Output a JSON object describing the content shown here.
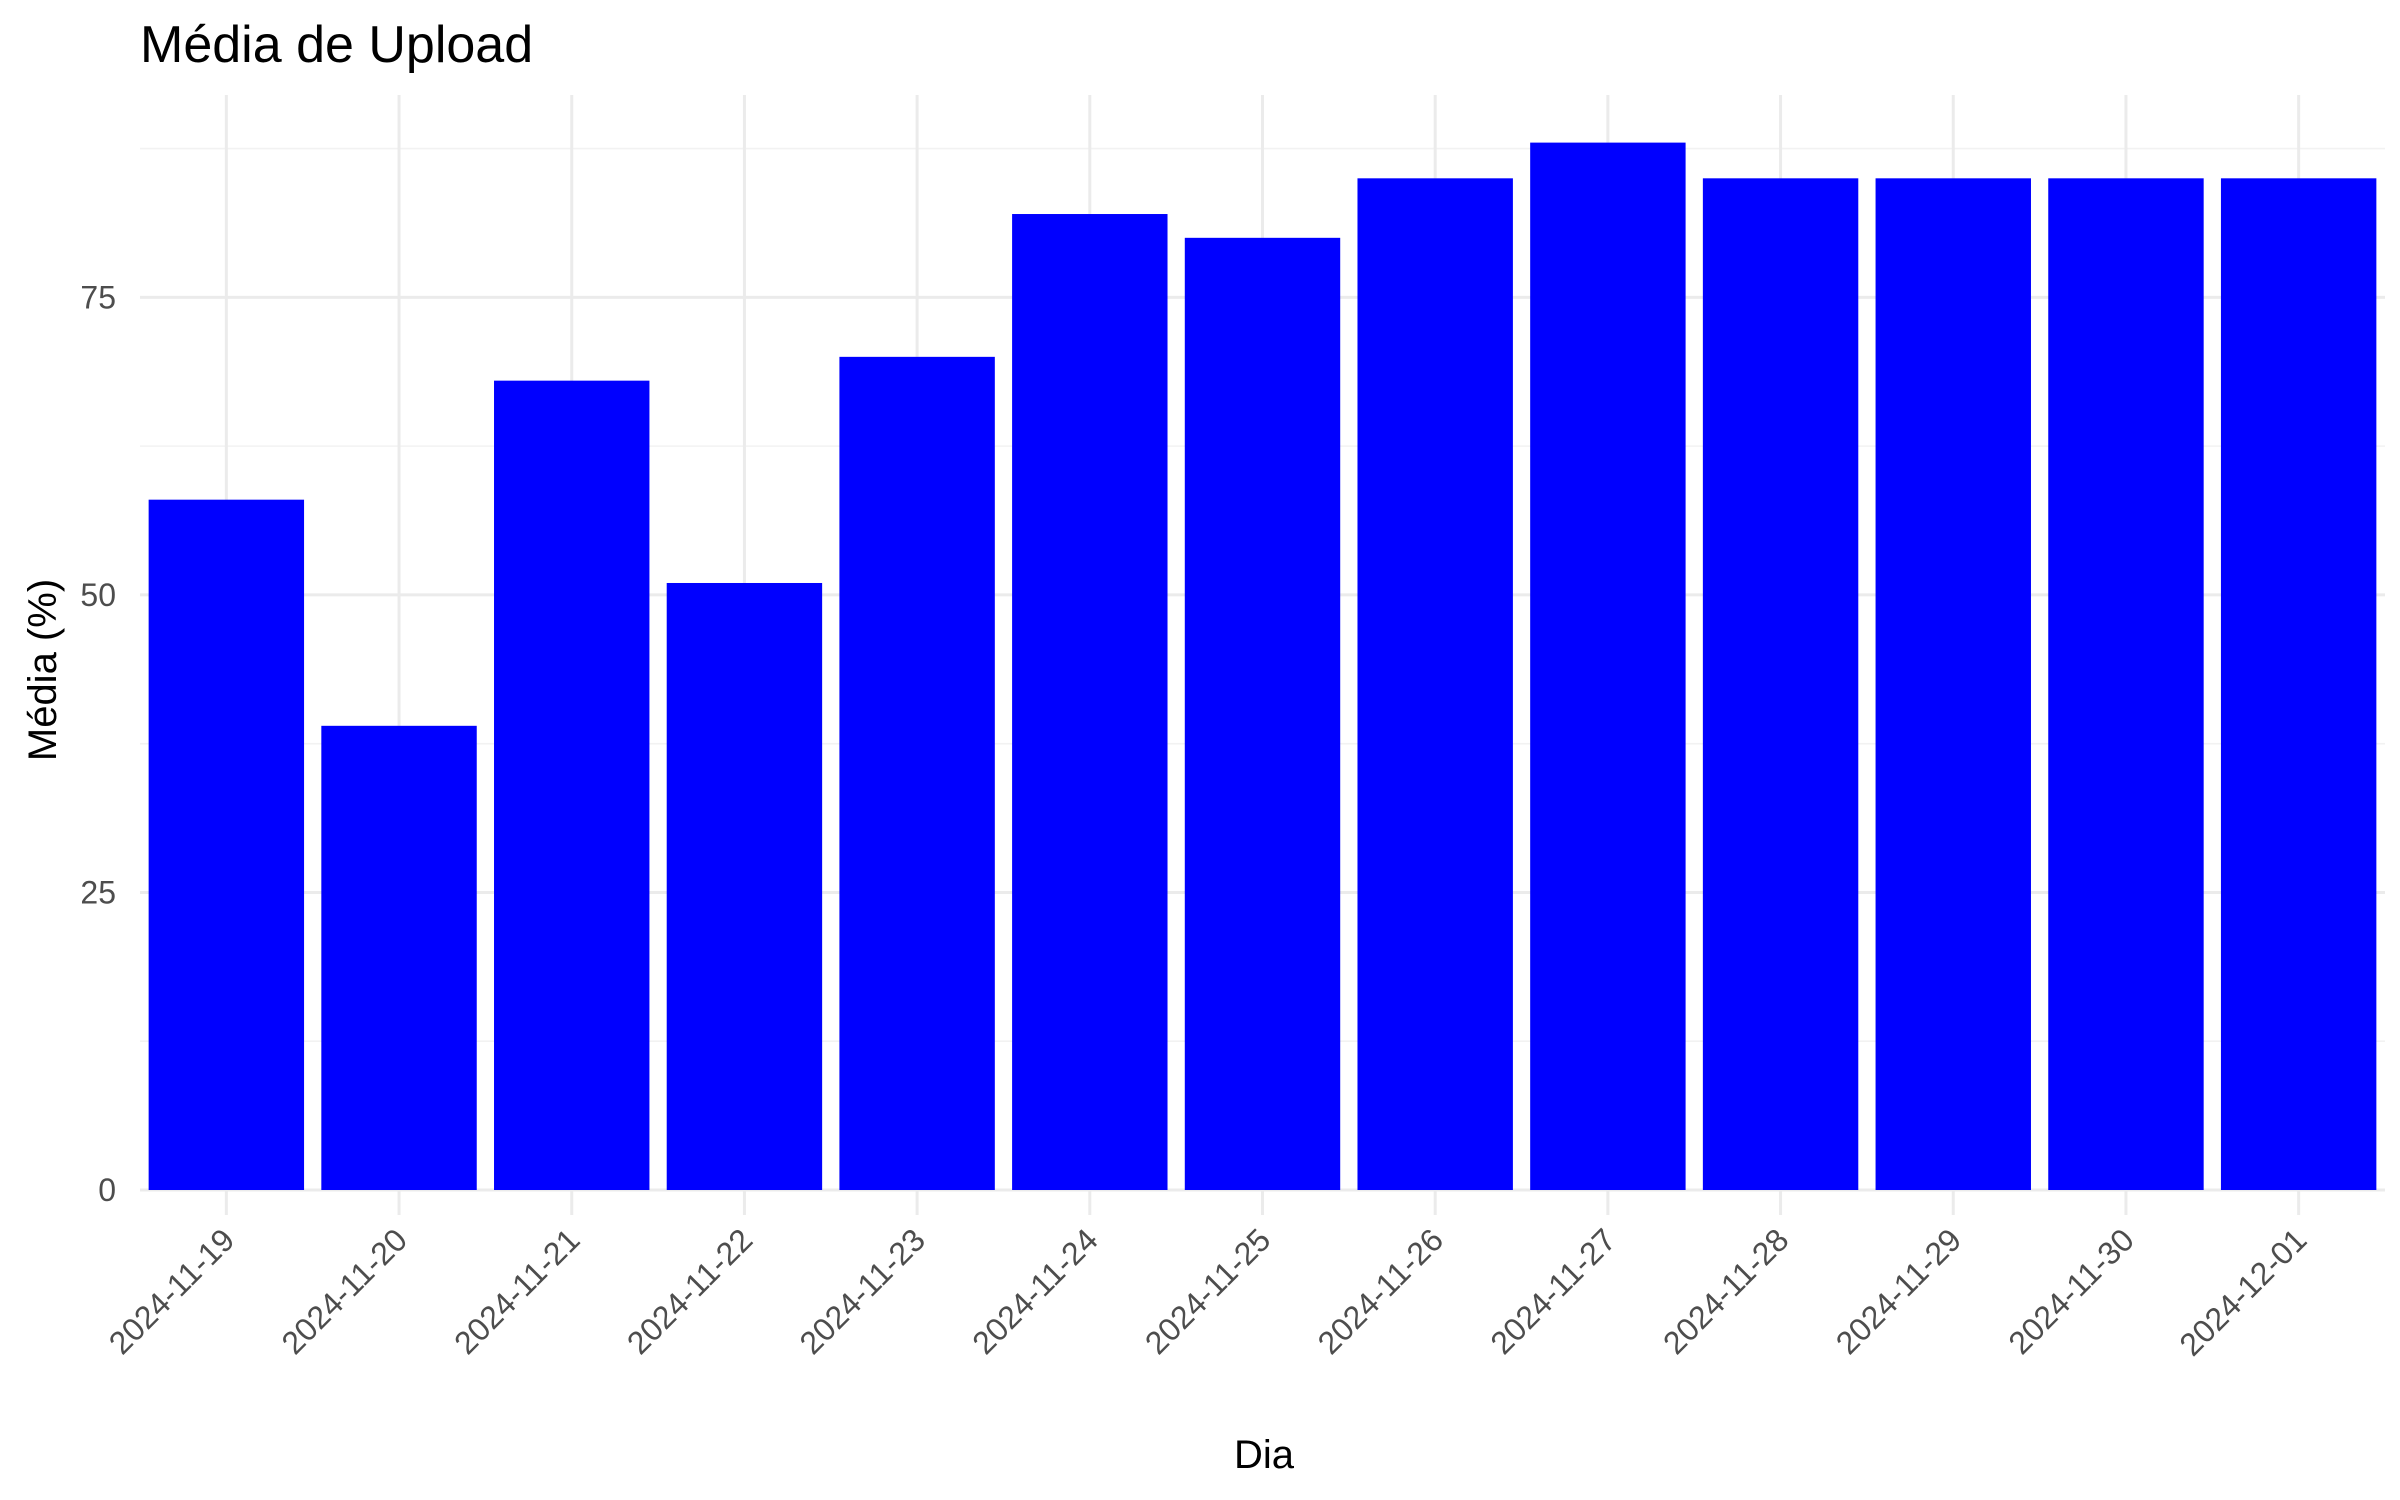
{
  "chart_data": {
    "type": "bar",
    "title": "Média de Upload",
    "xlabel": "Dia",
    "ylabel": "Média (%)",
    "categories": [
      "2024-11-19",
      "2024-11-20",
      "2024-11-21",
      "2024-11-22",
      "2024-11-23",
      "2024-11-24",
      "2024-11-25",
      "2024-11-26",
      "2024-11-27",
      "2024-11-28",
      "2024-11-29",
      "2024-11-30",
      "2024-12-01"
    ],
    "values": [
      58,
      39,
      68,
      51,
      70,
      82,
      80,
      85,
      88,
      85,
      85,
      85,
      85
    ],
    "ylim": [
      0,
      92
    ],
    "yticks": [
      "0",
      "25",
      "50",
      "75"
    ],
    "grid": true,
    "bar_color": "#0000ff",
    "gridline_color": "#ebebeb",
    "background_color": "#ffffff"
  }
}
